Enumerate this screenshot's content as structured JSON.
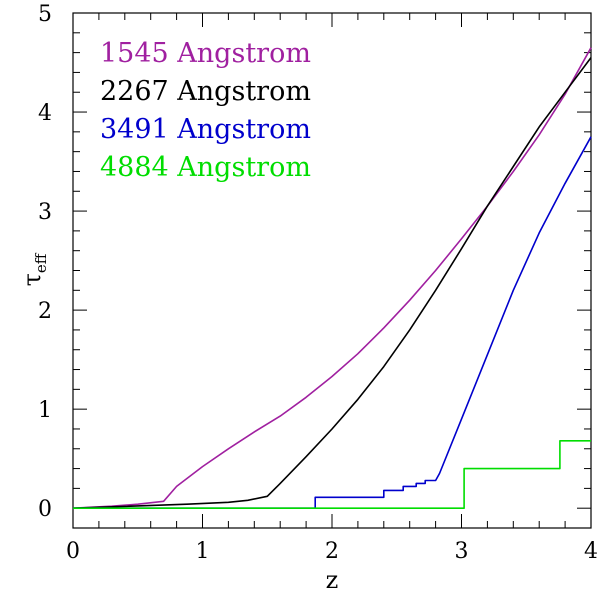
{
  "chart_data": {
    "type": "line",
    "title": "",
    "xlabel": "z",
    "ylabel_main": "τ",
    "ylabel_sub": "eff",
    "xlim": [
      0,
      4
    ],
    "ylim": [
      -0.2,
      5
    ],
    "xticks": [
      0,
      1,
      2,
      3,
      4
    ],
    "yticks": [
      0,
      1,
      2,
      3,
      4,
      5
    ],
    "grid": false,
    "legend_position": "top-left",
    "series": [
      {
        "name": "1545 Angstrom",
        "color": "#a020a0",
        "points": [
          [
            0,
            0
          ],
          [
            0.3,
            0.02
          ],
          [
            0.5,
            0.04
          ],
          [
            0.7,
            0.07
          ],
          [
            0.8,
            0.22
          ],
          [
            1.0,
            0.42
          ],
          [
            1.2,
            0.6
          ],
          [
            1.4,
            0.77
          ],
          [
            1.6,
            0.93
          ],
          [
            1.8,
            1.12
          ],
          [
            2.0,
            1.33
          ],
          [
            2.2,
            1.56
          ],
          [
            2.4,
            1.82
          ],
          [
            2.6,
            2.1
          ],
          [
            2.8,
            2.4
          ],
          [
            3.0,
            2.72
          ],
          [
            3.2,
            3.05
          ],
          [
            3.4,
            3.4
          ],
          [
            3.6,
            3.77
          ],
          [
            3.8,
            4.18
          ],
          [
            4.0,
            4.65
          ]
        ]
      },
      {
        "name": "2267 Angstrom",
        "color": "#000000",
        "points": [
          [
            0,
            0
          ],
          [
            0.88,
            0.04
          ],
          [
            1.2,
            0.06
          ],
          [
            1.35,
            0.08
          ],
          [
            1.5,
            0.12
          ],
          [
            1.6,
            0.25
          ],
          [
            1.8,
            0.52
          ],
          [
            2.0,
            0.8
          ],
          [
            2.2,
            1.1
          ],
          [
            2.4,
            1.43
          ],
          [
            2.6,
            1.8
          ],
          [
            2.8,
            2.2
          ],
          [
            3.0,
            2.62
          ],
          [
            3.2,
            3.05
          ],
          [
            3.4,
            3.45
          ],
          [
            3.6,
            3.85
          ],
          [
            3.8,
            4.2
          ],
          [
            4.0,
            4.55
          ]
        ]
      },
      {
        "name": "3491 Angstrom",
        "color": "#0000cc",
        "points": [
          [
            0,
            0
          ],
          [
            1.87,
            0.0
          ],
          [
            1.87,
            0.11
          ],
          [
            2.4,
            0.11
          ],
          [
            2.4,
            0.18
          ],
          [
            2.55,
            0.18
          ],
          [
            2.55,
            0.22
          ],
          [
            2.65,
            0.22
          ],
          [
            2.65,
            0.25
          ],
          [
            2.72,
            0.25
          ],
          [
            2.72,
            0.28
          ],
          [
            2.8,
            0.28
          ],
          [
            2.83,
            0.35
          ],
          [
            3.0,
            0.9
          ],
          [
            3.2,
            1.55
          ],
          [
            3.4,
            2.2
          ],
          [
            3.6,
            2.78
          ],
          [
            3.8,
            3.28
          ],
          [
            4.0,
            3.75
          ]
        ]
      },
      {
        "name": "4884 Angstrom",
        "color": "#00dd00",
        "points": [
          [
            0,
            0
          ],
          [
            3.02,
            0
          ],
          [
            3.02,
            0.4
          ],
          [
            3.76,
            0.4
          ],
          [
            3.76,
            0.68
          ],
          [
            4.0,
            0.68
          ]
        ]
      }
    ]
  }
}
